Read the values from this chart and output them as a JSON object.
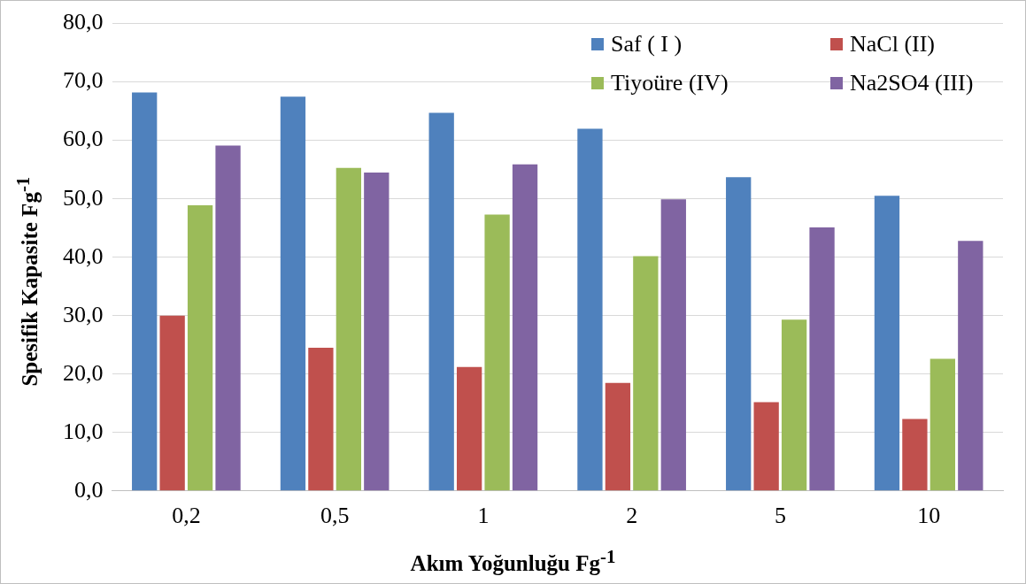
{
  "chart_data": {
    "type": "bar",
    "xlabel": "Akım Yoğunluğu Fg$^{-1}$",
    "ylabel": "Spesifik Kapasite Fg$^{-1}$",
    "categories": [
      "0,2",
      "0,5",
      "1",
      "2",
      "5",
      "10"
    ],
    "series": [
      {
        "name": "Saf ( I )",
        "color": "#4f81bd",
        "values": [
          68.2,
          67.5,
          64.7,
          62.0,
          53.7,
          50.5
        ]
      },
      {
        "name": "NaCl (II)",
        "color": "#c0504d",
        "values": [
          30.0,
          24.5,
          21.2,
          18.5,
          15.2,
          12.3
        ]
      },
      {
        "name": "Tiyoüre (IV)",
        "color": "#9bbb59",
        "values": [
          48.9,
          55.3,
          47.3,
          40.2,
          29.3,
          22.6
        ]
      },
      {
        "name": "Na2SO4 (III)",
        "color": "#8064a2",
        "values": [
          59.1,
          54.5,
          55.9,
          49.9,
          45.1,
          42.8
        ]
      }
    ],
    "ylim": [
      0,
      80
    ],
    "yticks": [
      {
        "value": 0,
        "label": "0,0"
      },
      {
        "value": 10,
        "label": "10,0"
      },
      {
        "value": 20,
        "label": "20,0"
      },
      {
        "value": 30,
        "label": "30,0"
      },
      {
        "value": 40,
        "label": "40,0"
      },
      {
        "value": 50,
        "label": "50,0"
      },
      {
        "value": 60,
        "label": "60,0"
      },
      {
        "value": 70,
        "label": "70,0"
      },
      {
        "value": 80,
        "label": "80,0"
      }
    ],
    "grid": "y",
    "legend": "top right"
  }
}
